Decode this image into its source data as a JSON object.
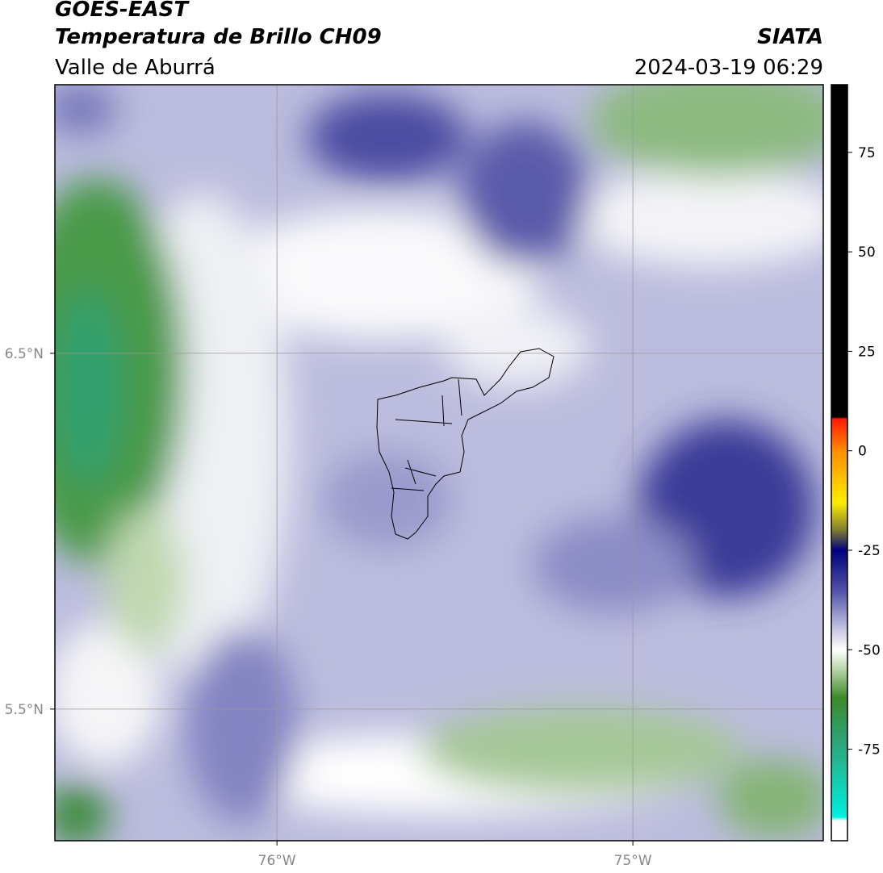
{
  "chart_data": {
    "type": "map",
    "title": "GOES-EAST",
    "subtitle": "Temperatura de Brillo CH09",
    "region": "Valle de Aburrá",
    "source": "SIATA",
    "datetime": "2024-03-19 06:29",
    "xlim": [
      -76.624,
      -74.465
    ],
    "ylim": [
      5.13,
      7.255
    ],
    "xticks": [
      {
        "value": -76,
        "label": "76°W"
      },
      {
        "value": -75,
        "label": "75°W"
      }
    ],
    "yticks": [
      {
        "value": 6.5,
        "label": "6.5°N"
      },
      {
        "value": 5.5,
        "label": "5.5°N"
      }
    ],
    "grid": true,
    "colorbar": {
      "lim": [
        -98,
        92
      ],
      "ticks": [
        75,
        50,
        25,
        0,
        -25,
        -50,
        -75
      ],
      "colormap": [
        {
          "value": 92,
          "color": "#000000"
        },
        {
          "value": 8.5,
          "color": "#000000"
        },
        {
          "value": 8,
          "color": "#ff1a00"
        },
        {
          "value": 0,
          "color": "#ff8c00"
        },
        {
          "value": -13,
          "color": "#ffee00"
        },
        {
          "value": -20,
          "color": "#807a30"
        },
        {
          "value": -25,
          "color": "#000080"
        },
        {
          "value": -35,
          "color": "#5050a8"
        },
        {
          "value": -45,
          "color": "#c8c8e4"
        },
        {
          "value": -50,
          "color": "#ffffff"
        },
        {
          "value": -55,
          "color": "#b8d4a8"
        },
        {
          "value": -62,
          "color": "#3d8a2a"
        },
        {
          "value": -72,
          "color": "#2ea070"
        },
        {
          "value": -92,
          "color": "#00f0e0"
        },
        {
          "value": -93,
          "color": "#ffffff"
        },
        {
          "value": -98,
          "color": "#ffffff"
        }
      ]
    }
  }
}
